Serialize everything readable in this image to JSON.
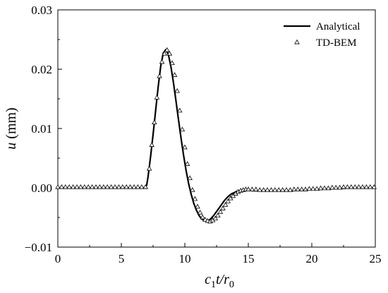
{
  "chart_data": {
    "type": "line",
    "xlabel": {
      "main": "c",
      "sub1": "1",
      "mid": "t",
      "sep": "/",
      "var": "r",
      "sub2": "0"
    },
    "ylabel": {
      "var": "u",
      "unit": " (mm)"
    },
    "xlim": [
      0,
      25
    ],
    "ylim": [
      -0.01,
      0.03
    ],
    "xticks": [
      0,
      5,
      10,
      15,
      20,
      25
    ],
    "xtick_labels": [
      "0",
      "5",
      "10",
      "15",
      "20",
      "25"
    ],
    "yticks": [
      -0.01,
      0.0,
      0.01,
      0.02,
      0.03
    ],
    "ytick_labels": [
      "−0.01",
      "0.00",
      "0.01",
      "0.02",
      "0.03"
    ],
    "grid": false,
    "legend_position": "top-right",
    "series": [
      {
        "name": "Analytical",
        "style": "line",
        "color": "#000000",
        "x": [
          0,
          1,
          2,
          3,
          4,
          5,
          6,
          6.9,
          7.0,
          7.1,
          7.3,
          7.5,
          7.7,
          7.9,
          8.1,
          8.3,
          8.5,
          8.7,
          8.9,
          9.1,
          9.3,
          9.5,
          9.7,
          9.9,
          10.1,
          10.3,
          10.5,
          10.7,
          10.9,
          11.1,
          11.3,
          11.5,
          11.7,
          11.9,
          12.1,
          12.3,
          12.5,
          12.7,
          12.9,
          13.1,
          13.3,
          13.5,
          13.7,
          13.9,
          14.1,
          14.3,
          14.5,
          14.7,
          14.9,
          15.1,
          15.3,
          15.5,
          15.8,
          16.2,
          16.6,
          17.0,
          17.5,
          18.0,
          18.5,
          19.0,
          19.5,
          20.0,
          20.5,
          21.0,
          21.5,
          22.0,
          22.5,
          23.0,
          23.5,
          24.0,
          24.5,
          25.0
        ],
        "y": [
          0,
          0,
          0,
          0,
          0,
          0,
          0,
          0,
          0.0005,
          0.0018,
          0.0052,
          0.009,
          0.013,
          0.017,
          0.0205,
          0.0227,
          0.0233,
          0.0225,
          0.0205,
          0.0178,
          0.0147,
          0.0115,
          0.0084,
          0.0055,
          0.0029,
          0.0007,
          -0.0011,
          -0.0026,
          -0.0037,
          -0.0046,
          -0.0052,
          -0.0055,
          -0.0056,
          -0.0055,
          -0.0051,
          -0.0046,
          -0.004,
          -0.0034,
          -0.0028,
          -0.0022,
          -0.0017,
          -0.0013,
          -0.001,
          -0.0008,
          -0.0006,
          -0.0005,
          -0.0004,
          -0.0004,
          -0.0004,
          -0.0004,
          -0.0005,
          -0.0005,
          -0.0005,
          -0.0005,
          -0.0005,
          -0.0005,
          -0.0005,
          -0.0005,
          -0.0005,
          -0.0004,
          -0.0004,
          -0.0003,
          -0.0003,
          -0.0002,
          -0.0002,
          -0.0001,
          -0.0001,
          0.0,
          0.0,
          0.0,
          0.0,
          0.0
        ]
      },
      {
        "name": "TD-BEM",
        "style": "marker-triangle-open",
        "color": "#000000",
        "x": [
          0.0,
          0.3,
          0.6,
          0.9,
          1.2,
          1.5,
          1.8,
          2.1,
          2.4,
          2.7,
          3.0,
          3.3,
          3.6,
          3.9,
          4.2,
          4.5,
          4.8,
          5.1,
          5.4,
          5.7,
          6.0,
          6.3,
          6.6,
          6.9,
          7.2,
          7.4,
          7.6,
          7.8,
          8.0,
          8.2,
          8.4,
          8.6,
          8.8,
          9.0,
          9.2,
          9.4,
          9.6,
          9.8,
          10.0,
          10.2,
          10.4,
          10.6,
          10.8,
          11.0,
          11.2,
          11.4,
          11.6,
          11.8,
          12.0,
          12.2,
          12.4,
          12.6,
          12.8,
          13.0,
          13.2,
          13.4,
          13.6,
          13.8,
          14.0,
          14.2,
          14.4,
          14.6,
          14.8,
          15.0,
          15.3,
          15.6,
          15.9,
          16.2,
          16.5,
          16.8,
          17.1,
          17.4,
          17.7,
          18.0,
          18.3,
          18.6,
          18.9,
          19.2,
          19.5,
          19.8,
          20.1,
          20.4,
          20.7,
          21.0,
          21.3,
          21.6,
          21.9,
          22.2,
          22.5,
          22.8,
          23.1,
          23.4,
          23.7,
          24.0,
          24.3,
          24.6,
          24.9
        ],
        "y": [
          0.0001,
          0.0001,
          0.0001,
          0.0001,
          0.0001,
          0.0001,
          0.0001,
          0.0001,
          0.0001,
          0.0001,
          0.0001,
          0.0001,
          0.0001,
          0.0001,
          0.0001,
          0.0001,
          0.0001,
          0.0001,
          0.0001,
          0.0001,
          0.0001,
          0.0001,
          0.0001,
          0.0001,
          0.0032,
          0.0072,
          0.011,
          0.0152,
          0.0188,
          0.0212,
          0.0226,
          0.0232,
          0.0226,
          0.021,
          0.019,
          0.0163,
          0.013,
          0.0098,
          0.0068,
          0.004,
          0.0016,
          -0.0004,
          -0.0019,
          -0.0032,
          -0.0042,
          -0.005,
          -0.0054,
          -0.0056,
          -0.0057,
          -0.0055,
          -0.0052,
          -0.0047,
          -0.0041,
          -0.0035,
          -0.0029,
          -0.0023,
          -0.0018,
          -0.0014,
          -0.001,
          -0.0007,
          -0.0005,
          -0.0004,
          -0.0003,
          -0.0003,
          -0.0003,
          -0.0003,
          -0.0004,
          -0.0004,
          -0.0004,
          -0.0004,
          -0.0004,
          -0.0004,
          -0.0004,
          -0.0004,
          -0.0004,
          -0.0003,
          -0.0003,
          -0.0003,
          -0.0003,
          -0.0002,
          -0.0002,
          -0.0002,
          -0.0001,
          -0.0001,
          -0.0001,
          0.0,
          0.0,
          0.0,
          0.0001,
          0.0001,
          0.0001,
          0.0001,
          0.0001,
          0.0001,
          0.0001,
          0.0001,
          0.0001
        ]
      }
    ]
  }
}
